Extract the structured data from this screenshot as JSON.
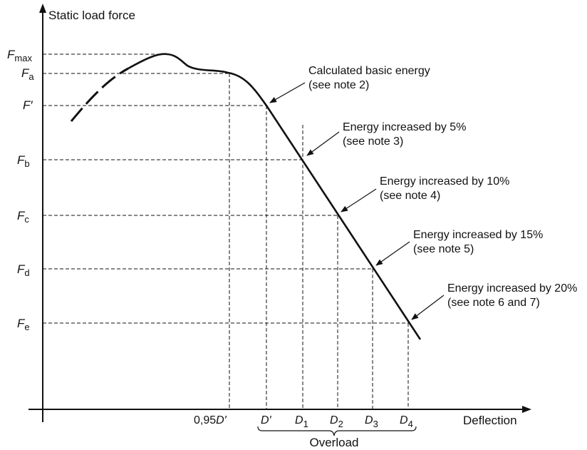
{
  "axes": {
    "y_label": "Static load force",
    "x_label": "Deflection"
  },
  "force_levels": [
    {
      "id": "fmax",
      "main": "F",
      "sub": "max",
      "prime": false
    },
    {
      "id": "fa",
      "main": "F",
      "sub": "a",
      "prime": false
    },
    {
      "id": "fprime",
      "main": "F",
      "sub": "",
      "prime": true
    },
    {
      "id": "fb",
      "main": "F",
      "sub": "b",
      "prime": false
    },
    {
      "id": "fc",
      "main": "F",
      "sub": "c",
      "prime": false
    },
    {
      "id": "fd",
      "main": "F",
      "sub": "d",
      "prime": false
    },
    {
      "id": "fe",
      "main": "F",
      "sub": "e",
      "prime": false
    }
  ],
  "deflection_marks": [
    {
      "id": "d095",
      "prefix": "0,95",
      "main": "D",
      "sub": "",
      "prime": true
    },
    {
      "id": "dprime",
      "prefix": "",
      "main": "D",
      "sub": "",
      "prime": true
    },
    {
      "id": "d1",
      "prefix": "",
      "main": "D",
      "sub": "1",
      "prime": false
    },
    {
      "id": "d2",
      "prefix": "",
      "main": "D",
      "sub": "2",
      "prime": false
    },
    {
      "id": "d3",
      "prefix": "",
      "main": "D",
      "sub": "3",
      "prime": false
    },
    {
      "id": "d4",
      "prefix": "",
      "main": "D",
      "sub": "4",
      "prime": false
    }
  ],
  "overload_label": "Overload",
  "annotations": [
    {
      "id": "basic",
      "line1": "Calculated basic energy",
      "line2": "(see note 2)"
    },
    {
      "id": "e5",
      "line1": "Energy increased by 5%",
      "line2": "(see note 3)"
    },
    {
      "id": "e10",
      "line1": "Energy increased by 10%",
      "line2": "(see note 4)"
    },
    {
      "id": "e15",
      "line1": "Energy increased by 15%",
      "line2": "(see note 5)"
    },
    {
      "id": "e20",
      "line1": "Energy increased by 20%",
      "line2": "(see note 6 and 7)"
    }
  ]
}
